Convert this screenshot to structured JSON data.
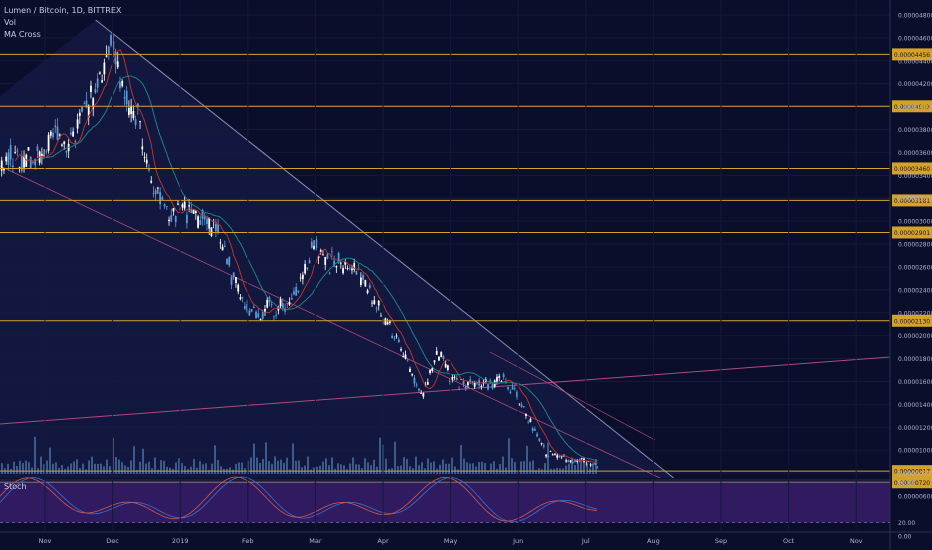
{
  "legend": {
    "symbol": "Lumen / Bitcoin, 1D, BITTREX",
    "vol": "Vol",
    "ma": "MA Cross"
  },
  "stoch": {
    "label": "Stoch"
  },
  "colors": {
    "background": "#0b0e2a",
    "candle_up": "#5b9bd5",
    "candle_down": "#ffffff",
    "volume": "#3c5a8a",
    "level_line": "#d4a22a",
    "level_label_bg": "#d4a22a",
    "trendline": "#8a8fb0",
    "support_line": "#b04a7a",
    "ma_fast": "#c0392b",
    "ma_slow": "#1e8b8b",
    "stoch_k": "#3b6fd6",
    "stoch_d": "#d25a4a",
    "stoch_band": "#3a1f6e"
  },
  "chart_data": {
    "type": "candlestick",
    "title": "Lumen / Bitcoin, 1D, BITTREX",
    "x_ticks": [
      "Nov",
      "Dec",
      "2019",
      "Feb",
      "Mar",
      "Apr",
      "May",
      "Jun",
      "Jul",
      "Aug",
      "Sep",
      "Oct",
      "Nov"
    ],
    "y_ticks": [
      "0.00004800",
      "0.00004600",
      "0.00004400",
      "0.00004200",
      "0.00004000",
      "0.00003800",
      "0.00003600",
      "0.00003400",
      "0.00003200",
      "0.00003000",
      "0.00002800",
      "0.00002600",
      "0.00002400",
      "0.00002200",
      "0.00002000",
      "0.00001800",
      "0.00001600",
      "0.00001400",
      "0.00001200",
      "0.00001000",
      "0.00000800",
      "0.00000600"
    ],
    "ylim": [
      6e-06,
      4.8e-05
    ],
    "levels": [
      {
        "value": 4.456e-05,
        "label": "0.00004456"
      },
      {
        "value": 4.003e-05,
        "label": "0.00004003"
      },
      {
        "value": 3.46e-05,
        "label": "0.00003460"
      },
      {
        "value": 3.181e-05,
        "label": "0.00003181"
      },
      {
        "value": 2.901e-05,
        "label": "0.00002901"
      },
      {
        "value": 2.13e-05,
        "label": "0.00002130"
      },
      {
        "value": 8.17e-06,
        "label": "0.00000817"
      },
      {
        "value": 7.2e-06,
        "label": "0.00000720"
      }
    ],
    "close_series": {
      "months": [
        0,
        0.2,
        0.4,
        0.6,
        0.8,
        1.0,
        1.1,
        1.25,
        1.4,
        1.55,
        1.7,
        1.85,
        2.0,
        2.2,
        2.4,
        2.6,
        2.8,
        3.0,
        3.2,
        3.4,
        3.6,
        3.8,
        4.0,
        4.2,
        4.4,
        4.6,
        4.8,
        5.0,
        5.2,
        5.4,
        5.6,
        5.8,
        6.0,
        6.2,
        6.4,
        6.6,
        6.8,
        7.0,
        7.2,
        7.4,
        7.6,
        7.8,
        8.0,
        8.2
      ],
      "values": [
        3.55e-05,
        3.78e-05,
        3.68e-05,
        3.95e-05,
        4.25e-05,
        4.55e-05,
        4.2e-05,
        3.98e-05,
        3.85e-05,
        3.45e-05,
        3.18e-05,
        3.02e-05,
        3.12e-05,
        3.05e-05,
        3e-05,
        2.85e-05,
        2.45e-05,
        2.18e-05,
        2.22e-05,
        2.25e-05,
        2.26e-05,
        2.45e-05,
        2.85e-05,
        2.62e-05,
        2.65e-05,
        2.6e-05,
        2.38e-05,
        2.15e-05,
        1.98e-05,
        1.7e-05,
        1.48e-05,
        1.88e-05,
        1.62e-05,
        1.58e-05,
        1.62e-05,
        1.58e-05,
        1.62e-05,
        1.45e-05,
        1.22e-05,
        9.8e-06,
        9.5e-06,
        9.2e-06,
        9e-06,
        8.8e-06
      ]
    },
    "stoch": {
      "y_ticks": [
        "80.00",
        "20.00",
        "0.00"
      ],
      "ylim": [
        0,
        100
      ],
      "band": [
        20,
        80
      ]
    }
  }
}
